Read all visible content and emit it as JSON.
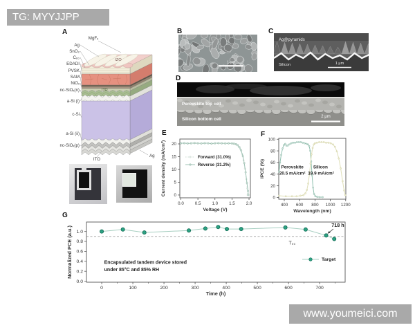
{
  "overlays": {
    "tag_text": "TG: MYYJJPP",
    "site_text": "www.youmeici.com"
  },
  "panels": {
    "a": {
      "label": "A",
      "labels": [
        {
          "text": "MgFₓ"
        },
        {
          "text": "Ag"
        },
        {
          "text": "SnO₂"
        },
        {
          "text": "C₆₀"
        },
        {
          "text": "EDADI"
        },
        {
          "text": "PVSK"
        },
        {
          "text": "SAM"
        },
        {
          "text": "NiOₓ"
        },
        {
          "text": "nc-SiOₓ(n)"
        },
        {
          "text": "a-Si (i)"
        },
        {
          "text": "c-Si"
        },
        {
          "text": "a-Si (ii)"
        },
        {
          "text": "nc-SiOₓ(p)"
        },
        {
          "text": "ITO"
        },
        {
          "text": "Ag"
        },
        {
          "text": "IZO"
        },
        {
          "text": "ITO"
        }
      ]
    },
    "b": {
      "label": "B",
      "scale_text": "1 μm"
    },
    "c": {
      "label": "C",
      "annotation": "Ag@pyramids",
      "substrate": "Silicon",
      "scale_text": "1 μm"
    },
    "d": {
      "label": "D",
      "top_cell": "Perovskite top cell",
      "bottom_cell": "Silicon bottom cell",
      "scale_text": "2 μm"
    },
    "e": {
      "label": "E"
    },
    "f": {
      "label": "F"
    },
    "g": {
      "label": "G"
    }
  },
  "chart_data": [
    {
      "id": "E",
      "type": "line",
      "xlabel": "Voltage (V)",
      "ylabel": "Current density (mA/cm²)",
      "xlim": [
        -0.03,
        2.04
      ],
      "ylim": [
        -1.1,
        21.9
      ],
      "xticks": [
        0,
        0.5,
        1,
        1.5,
        2
      ],
      "xtick_labels": [
        "0.0",
        "0.5",
        "1.0",
        "1.5",
        "2.0"
      ],
      "yticks": [
        0,
        5,
        10,
        15,
        20
      ],
      "ytick_labels": [
        "0",
        "5",
        "10",
        "15",
        "20"
      ],
      "legend_position": "center-left",
      "series": [
        {
          "name": "Forward (31.0%)",
          "color": "#ccddd3",
          "dash": "1.6,1.9",
          "marker": "#ffffff",
          "marker_edge": "#c2d5ca",
          "marker_r": 1.1,
          "x": [
            0,
            0.1,
            0.2,
            0.3,
            0.4,
            0.5,
            0.6,
            0.7,
            0.8,
            0.9,
            1,
            1.1,
            1.2,
            1.3,
            1.4,
            1.5,
            1.55,
            1.6,
            1.65,
            1.7,
            1.75,
            1.8,
            1.84,
            1.88,
            1.92,
            1.95,
            1.96
          ],
          "y": [
            20.15,
            20.2,
            20.1,
            20.15,
            20.25,
            20.15,
            20.1,
            20.2,
            20.15,
            20.05,
            20.15,
            20.2,
            20.15,
            20.1,
            20.15,
            20.1,
            20.05,
            19.85,
            19.5,
            18.8,
            17.8,
            15.9,
            13.6,
            10.3,
            6.2,
            2.6,
            0
          ]
        },
        {
          "name": "Reverse (31.2%)",
          "color": "#9fc3b5",
          "marker": "#d2e2da",
          "marker_edge": "#8fb5a6",
          "marker_r": 1.2,
          "x": [
            0,
            0.1,
            0.2,
            0.3,
            0.4,
            0.5,
            0.6,
            0.7,
            0.8,
            0.9,
            1,
            1.1,
            1.2,
            1.3,
            1.4,
            1.5,
            1.56,
            1.62,
            1.67,
            1.72,
            1.77,
            1.82,
            1.86,
            1.9,
            1.94,
            1.97,
            1.98
          ],
          "y": [
            20.25,
            20.3,
            20.2,
            20.25,
            20.35,
            20.25,
            20.2,
            20.3,
            20.25,
            20.15,
            20.25,
            20.3,
            20.25,
            20.2,
            20.25,
            20.2,
            20.1,
            19.9,
            19.5,
            18.7,
            17.4,
            15.2,
            12.5,
            8.9,
            4.7,
            1.6,
            0
          ]
        }
      ]
    },
    {
      "id": "F",
      "type": "line",
      "xlabel": "Wavelength (nm)",
      "ylabel": "IPCE (%)",
      "xlim": [
        328,
        1202
      ],
      "ylim": [
        -3,
        101.5
      ],
      "xticks": [
        400,
        600,
        800,
        1000,
        1200
      ],
      "yticks": [
        0,
        20,
        40,
        60,
        80,
        100
      ],
      "series": [
        {
          "name": "Perovskite",
          "color": "#8fc1b0",
          "marker": "#d4e6de",
          "marker_edge": "#85b5a4",
          "marker_r": 1.1,
          "x": [
            332,
            345,
            360,
            378,
            395,
            412,
            428,
            445,
            465,
            490,
            515,
            540,
            565,
            590,
            615,
            640,
            665,
            690,
            710,
            725,
            738,
            750,
            762,
            775,
            788,
            805,
            830,
            860,
            900
          ],
          "y": [
            44,
            60,
            73,
            84,
            90,
            92,
            89,
            89,
            91,
            93,
            94,
            94,
            95,
            95,
            95,
            94,
            93,
            92,
            91,
            88,
            80,
            62,
            38,
            17,
            6,
            2,
            1,
            0.5,
            0.5
          ]
        },
        {
          "name": "Silicon",
          "color": "#dfdfb8",
          "marker": "#f0efd2",
          "marker_edge": "#cfcfa4",
          "marker_r": 1.1,
          "x": [
            332,
            420,
            500,
            560,
            610,
            650,
            675,
            695,
            712,
            728,
            742,
            755,
            770,
            785,
            800,
            825,
            855,
            885,
            915,
            945,
            975,
            1005,
            1035,
            1060,
            1085,
            1110,
            1135,
            1160,
            1180,
            1195
          ],
          "y": [
            3,
            2,
            2,
            2,
            3,
            4,
            7,
            13,
            24,
            40,
            58,
            74,
            85,
            91,
            93,
            94,
            95,
            95,
            95,
            94,
            94,
            93,
            91,
            87,
            79,
            67,
            50,
            28,
            12,
            4
          ]
        }
      ],
      "annotations": [
        {
          "text": "Perovskite",
          "x": 505,
          "y": 50,
          "size": 6.4
        },
        {
          "text": "20.5 mA/cm²",
          "x": 505,
          "y": 39,
          "size": 6.4
        },
        {
          "text": "Silicon",
          "x": 872,
          "y": 50,
          "size": 6.4
        },
        {
          "text": "19.9 mA/cm²",
          "x": 878,
          "y": 39,
          "size": 6.4
        }
      ]
    },
    {
      "id": "G",
      "type": "line",
      "xlabel": "Time (h)",
      "ylabel": "Normalized PCE (a.u.)",
      "xlim": [
        -49,
        782
      ],
      "ylim": [
        -0.02,
        1.19
      ],
      "xticks": [
        0,
        100,
        200,
        300,
        400,
        500,
        600,
        700
      ],
      "xminor": [
        50,
        150,
        250,
        350,
        450,
        550,
        650,
        750
      ],
      "yticks": [
        0,
        0.2,
        0.4,
        0.6,
        0.8,
        1
      ],
      "ytick_labels": [
        "0.0",
        "0.2",
        "0.4",
        "0.6",
        "0.8",
        "1.0"
      ],
      "dash_y": 0.9,
      "legend_position": "lower-right",
      "series": [
        {
          "name": "Target",
          "color": "#a6cec0",
          "marker": "#2da183",
          "marker_edge": "#0e6b52",
          "marker_r": 2.6,
          "x": [
            0,
            68,
            137,
            280,
            333,
            374,
            402,
            448,
            590,
            655,
            721,
            747
          ],
          "y": [
            1.0,
            1.04,
            0.98,
            1.02,
            1.06,
            1.09,
            1.05,
            1.05,
            1.08,
            1.04,
            0.92,
            0.85
          ]
        }
      ],
      "annotations": [
        {
          "text": "718 h",
          "x": 779,
          "y": 1.09,
          "anchor": "end",
          "size": 7.2,
          "arrow": [
            744,
            1.05,
            726,
            0.96
          ]
        },
        {
          "text": "T₉₀",
          "x": 612,
          "y": 0.74,
          "size": 7,
          "weight": 400,
          "color": "#444"
        },
        {
          "text": "Encapsulated tandem device stored",
          "x": 8,
          "y": 0.35,
          "anchor": "start",
          "size": 7
        },
        {
          "text": "under 85°C and 85% RH",
          "x": 8,
          "y": 0.2,
          "anchor": "start",
          "size": 7
        }
      ]
    }
  ]
}
